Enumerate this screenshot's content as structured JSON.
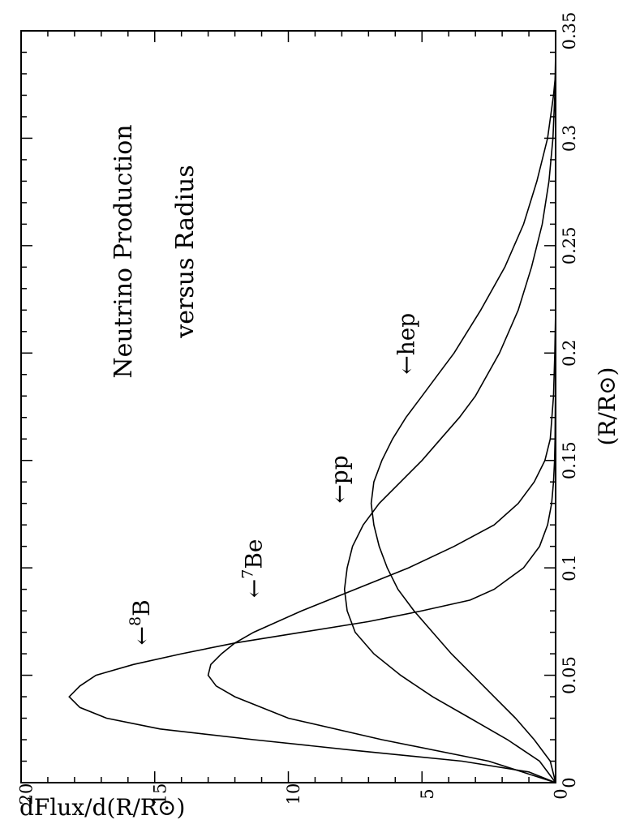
{
  "chart_data": {
    "type": "line",
    "orientation": "rotated 90 degrees clockwise",
    "title": [
      "Neutrino Production",
      "versus Radius"
    ],
    "xlabel": "(R/R⊙)",
    "ylabel": "dFlux/d(R/R⊙)",
    "xlim": [
      0,
      0.35
    ],
    "ylim": [
      0,
      20
    ],
    "x_ticks": [
      "0",
      "0.05",
      "0.1",
      "0.15",
      "0.2",
      "0.25",
      "0.3",
      "0.35"
    ],
    "y_ticks": [
      "0",
      "5",
      "10",
      "15",
      "20"
    ],
    "grid": false,
    "series": [
      {
        "name": "8B",
        "x": [
          0,
          0.005,
          0.01,
          0.015,
          0.02,
          0.025,
          0.03,
          0.035,
          0.04,
          0.045,
          0.05,
          0.055,
          0.06,
          0.065,
          0.07,
          0.075,
          0.08,
          0.085,
          0.09,
          0.1,
          0.11,
          0.12,
          0.13,
          0.14,
          0.15,
          0.16,
          0.18,
          0.2
        ],
        "y": [
          0,
          1.0,
          3.5,
          7.5,
          11.3,
          14.8,
          16.8,
          17.8,
          18.2,
          17.8,
          17.2,
          15.8,
          14.0,
          12.0,
          9.5,
          7.0,
          5.0,
          3.2,
          2.3,
          1.2,
          0.6,
          0.3,
          0.15,
          0.08,
          0.04,
          0.02,
          0.01,
          0
        ]
      },
      {
        "name": "7Be",
        "x": [
          0,
          0.01,
          0.02,
          0.03,
          0.04,
          0.045,
          0.05,
          0.055,
          0.06,
          0.065,
          0.07,
          0.08,
          0.09,
          0.1,
          0.11,
          0.12,
          0.13,
          0.14,
          0.15,
          0.16,
          0.18,
          0.2,
          0.22
        ],
        "y": [
          0,
          2.5,
          6.5,
          10.0,
          12.0,
          12.7,
          13.0,
          12.9,
          12.5,
          12.0,
          11.3,
          9.5,
          7.5,
          5.5,
          3.8,
          2.3,
          1.4,
          0.8,
          0.4,
          0.2,
          0.08,
          0.03,
          0
        ]
      },
      {
        "name": "pp",
        "x": [
          0,
          0.01,
          0.02,
          0.03,
          0.04,
          0.05,
          0.06,
          0.07,
          0.08,
          0.09,
          0.1,
          0.11,
          0.12,
          0.13,
          0.14,
          0.15,
          0.16,
          0.17,
          0.18,
          0.2,
          0.22,
          0.24,
          0.26,
          0.28,
          0.3,
          0.32,
          0.34
        ],
        "y": [
          0,
          0.6,
          1.8,
          3.2,
          4.6,
          5.8,
          6.8,
          7.5,
          7.8,
          7.9,
          7.8,
          7.6,
          7.2,
          6.6,
          5.8,
          5.0,
          4.3,
          3.6,
          3.0,
          2.1,
          1.4,
          0.9,
          0.5,
          0.25,
          0.1,
          0.03,
          0
        ]
      },
      {
        "name": "hep",
        "x": [
          0,
          0.01,
          0.02,
          0.03,
          0.04,
          0.05,
          0.06,
          0.07,
          0.08,
          0.09,
          0.1,
          0.11,
          0.12,
          0.13,
          0.14,
          0.15,
          0.16,
          0.17,
          0.18,
          0.19,
          0.2,
          0.22,
          0.24,
          0.26,
          0.28,
          0.3,
          0.32,
          0.33
        ],
        "y": [
          0,
          0.2,
          0.8,
          1.5,
          2.3,
          3.1,
          3.9,
          4.6,
          5.3,
          5.9,
          6.3,
          6.6,
          6.8,
          6.9,
          6.8,
          6.5,
          6.1,
          5.6,
          5.0,
          4.4,
          3.8,
          2.8,
          1.9,
          1.2,
          0.7,
          0.3,
          0.08,
          0
        ]
      }
    ],
    "annotations": [
      {
        "text": "←",
        "sup": "8",
        "label": "B",
        "series": "8B",
        "x": 0.064,
        "y": 15.2
      },
      {
        "text": "←",
        "sup": "7",
        "label": "Be",
        "series": "7Be",
        "x": 0.086,
        "y": 11.0
      },
      {
        "text": "←",
        "sup": "",
        "label": "pp",
        "series": "pp",
        "x": 0.13,
        "y": 7.8
      },
      {
        "text": "←",
        "sup": "",
        "label": "hep",
        "series": "hep",
        "x": 0.19,
        "y": 5.3
      }
    ]
  }
}
